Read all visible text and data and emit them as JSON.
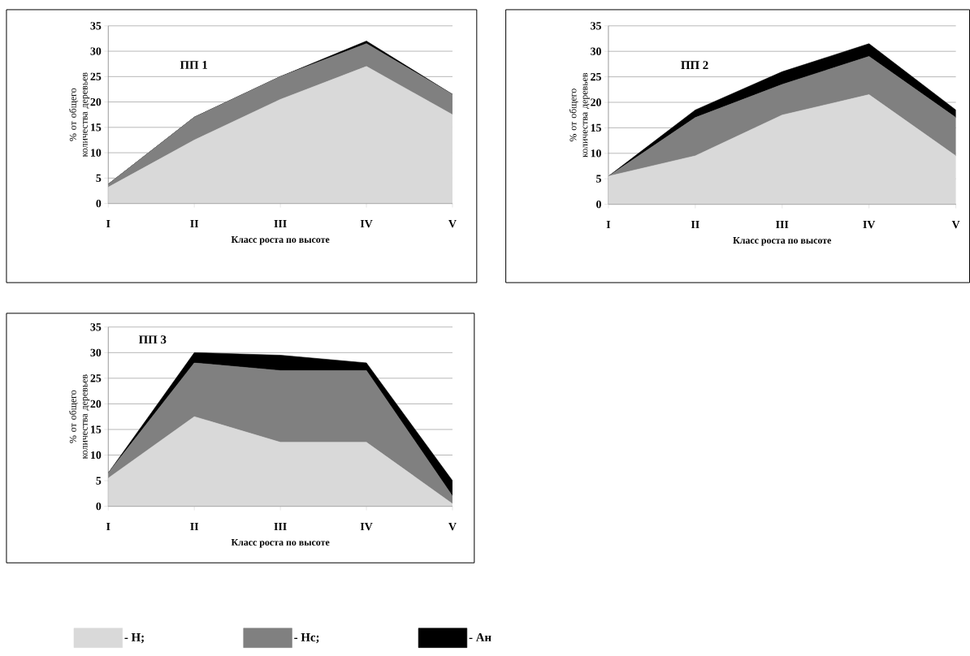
{
  "chart_data": [
    {
      "type": "area",
      "stacked": true,
      "categories": [
        "I",
        "II",
        "III",
        "IV",
        "V"
      ],
      "xlabel": "Класс роста по высоте",
      "ylabel": "% от общего количества деревьев",
      "annotations": [
        "ПП 1"
      ],
      "ylim": [
        0,
        35
      ],
      "yticks": [
        0,
        5,
        10,
        15,
        20,
        25,
        30,
        35
      ],
      "grid": "y",
      "series": [
        {
          "color": "#d9d9d9",
          "values": [
            3.2,
            12.5,
            20.5,
            27,
            17.5
          ]
        },
        {
          "color": "#808080",
          "values": [
            0.6,
            4.5,
            4.5,
            4.5,
            4
          ]
        },
        {
          "color": "#000000",
          "values": [
            0,
            0,
            0,
            0.5,
            0
          ]
        }
      ]
    },
    {
      "type": "area",
      "stacked": true,
      "categories": [
        "I",
        "II",
        "III",
        "IV",
        "V"
      ],
      "xlabel": "Класс роста по высоте",
      "ylabel": "% от общего количества деревьев",
      "annotations": [
        "ПП 2"
      ],
      "ylim": [
        0,
        35
      ],
      "yticks": [
        0,
        5,
        10,
        15,
        20,
        25,
        30,
        35
      ],
      "grid": "y",
      "series": [
        {
          "color": "#d9d9d9",
          "values": [
            5.5,
            9.5,
            17.5,
            21.5,
            9.5
          ]
        },
        {
          "color": "#808080",
          "values": [
            0,
            7.5,
            6,
            7.5,
            7.5
          ]
        },
        {
          "color": "#000000",
          "values": [
            0,
            1.5,
            2.5,
            2.5,
            1.5
          ]
        }
      ]
    },
    {
      "type": "area",
      "stacked": true,
      "categories": [
        "I",
        "II",
        "III",
        "IV",
        "V"
      ],
      "xlabel": "Класс роста по высоте",
      "ylabel": "% от общего количества деревьев",
      "annotations": [
        "ПП 3"
      ],
      "ylim": [
        0,
        35
      ],
      "yticks": [
        0,
        5,
        10,
        15,
        20,
        25,
        30,
        35
      ],
      "grid": "y",
      "legend": "bottom",
      "series": [
        {
          "name": "- Н;",
          "color": "#d9d9d9",
          "values": [
            5.5,
            17.5,
            12.5,
            12.5,
            0.5
          ]
        },
        {
          "name": "- Нс;",
          "color": "#808080",
          "values": [
            1,
            10.5,
            14,
            14,
            1.5
          ]
        },
        {
          "name": "- Ан",
          "color": "#000000",
          "values": [
            0,
            2,
            3,
            1.5,
            3
          ]
        }
      ]
    }
  ]
}
